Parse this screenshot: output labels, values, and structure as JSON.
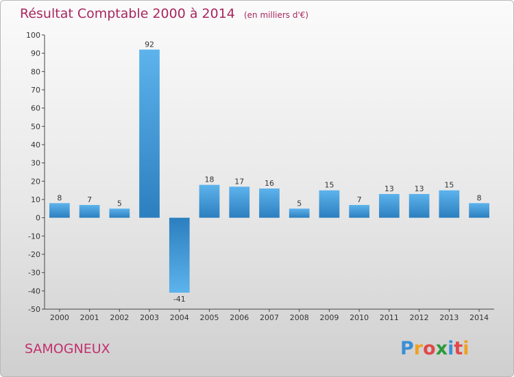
{
  "chart_data": {
    "type": "bar",
    "title": "Résultat Comptable 2000 à 2014",
    "unit_note": "(en milliers d'€)",
    "categories": [
      "2000",
      "2001",
      "2002",
      "2003",
      "2004",
      "2005",
      "2006",
      "2007",
      "2008",
      "2009",
      "2010",
      "2011",
      "2012",
      "2013",
      "2014"
    ],
    "values": [
      8,
      7,
      5,
      92,
      -41,
      18,
      17,
      16,
      5,
      15,
      7,
      13,
      13,
      15,
      8
    ],
    "ylim": [
      -50,
      100
    ],
    "yticks": [
      100,
      90,
      80,
      70,
      60,
      50,
      40,
      30,
      20,
      10,
      0,
      -10,
      -20,
      -30,
      -40,
      -50
    ],
    "xlabel": "",
    "ylabel": "",
    "grid": false,
    "legend": "none",
    "colors": {
      "bar_light": "#5db3ec",
      "bar_dark": "#2c7fbf",
      "title": "#a8265d"
    }
  },
  "footer": {
    "commune": "SAMOGNEUX",
    "logo_letters": [
      "P",
      "r",
      "o",
      "x",
      "i",
      "t",
      "i"
    ],
    "logo_colors": [
      "#3a8fd6",
      "#f0a020",
      "#e04848",
      "#2a9a3a",
      "#3a8fd6",
      "#e04848",
      "#f0a020"
    ]
  }
}
